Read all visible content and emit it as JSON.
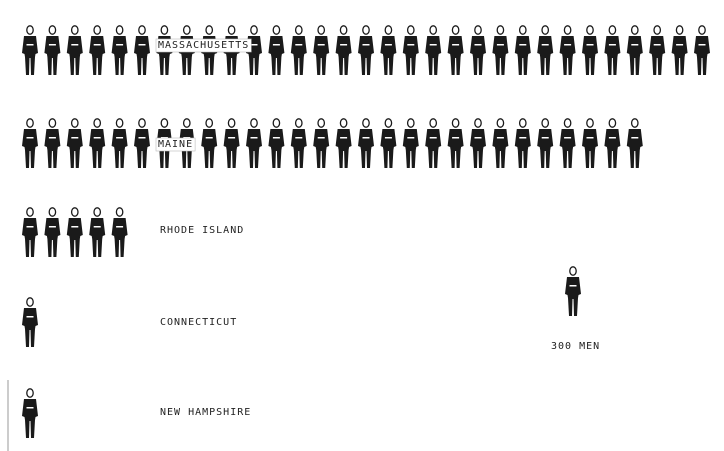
{
  "chart_data": {
    "type": "pictograph",
    "categories": [
      "MASSACHUSETTS",
      "MAINE",
      "RHODE ISLAND",
      "CONNECTICUT",
      "NEW HAMPSHIRE"
    ],
    "values": [
      9450,
      8550,
      1650,
      480,
      390
    ],
    "unit": {
      "value": 300,
      "label": "300 MEN"
    },
    "color": "#1a1a1a"
  }
}
